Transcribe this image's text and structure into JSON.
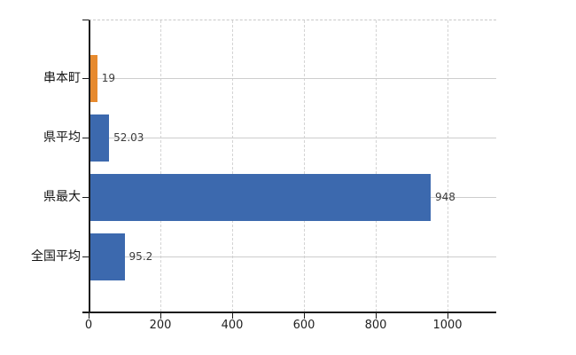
{
  "chart_data": {
    "type": "bar",
    "orientation": "horizontal",
    "categories": [
      "串本町",
      "県平均",
      "県最大",
      "全国平均"
    ],
    "values": [
      19,
      52.03,
      948,
      95.2
    ],
    "value_labels": [
      "19",
      "52.03",
      "948",
      "95.2"
    ],
    "bar_colors": [
      "#e78a2e",
      "#3c69ae",
      "#3c69ae",
      "#3c69ae"
    ],
    "highlight_color": "#e78a2e",
    "default_color": "#3c69ae",
    "x_ticks": [
      "0",
      "200",
      "400",
      "600",
      "800",
      "1000"
    ],
    "x_tick_values": [
      0,
      200,
      400,
      600,
      800,
      1000
    ],
    "xlim": [
      0,
      1136
    ],
    "xlabel": "",
    "ylabel": "",
    "grid": true,
    "legend_position": "none"
  },
  "colors": {
    "axis": "#1a1a1a",
    "grid": "#cdcdcd",
    "top_border": "#c9c9c9",
    "value_text": "#3c3c3c",
    "tick_text": "#1f1f1f",
    "background": "#ffffff"
  }
}
